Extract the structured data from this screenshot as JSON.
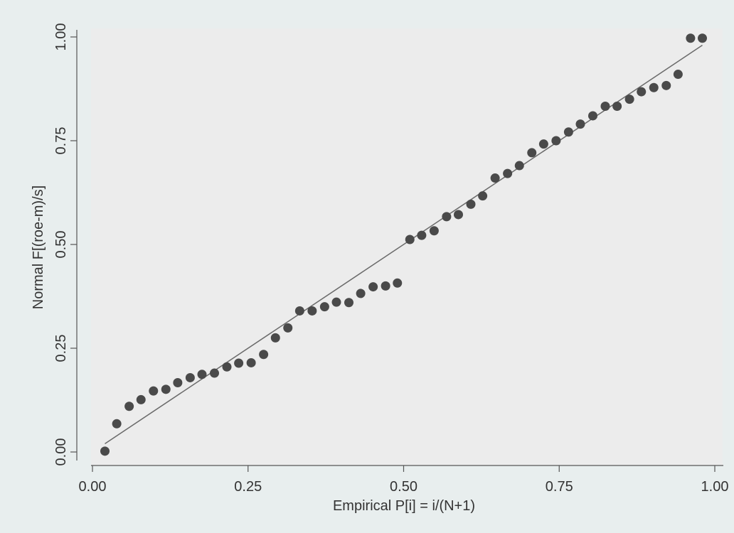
{
  "chart_data": {
    "type": "scatter",
    "title": "",
    "xlabel": "Empirical P[i] = i/(N+1)",
    "ylabel": "Normal F[(roe-m)/s]",
    "xlim": [
      0,
      1
    ],
    "ylim": [
      0,
      1
    ],
    "x_ticks": [
      "0.00",
      "0.25",
      "0.50",
      "0.75",
      "1.00"
    ],
    "y_ticks": [
      "0.00",
      "0.25",
      "0.50",
      "0.75",
      "1.00"
    ],
    "grid": false,
    "legend": "none",
    "colors": {
      "background": "#e8eeee",
      "plot_background": "#ececec",
      "marker": "#4a4a4a",
      "line": "#6a6a6a",
      "text": "#333333"
    },
    "reference_line": {
      "x": [
        0.02,
        0.98
      ],
      "y": [
        0.02,
        0.98
      ]
    },
    "points": {
      "x": [
        0.02,
        0.039,
        0.059,
        0.078,
        0.098,
        0.118,
        0.137,
        0.157,
        0.176,
        0.196,
        0.216,
        0.235,
        0.255,
        0.275,
        0.294,
        0.314,
        0.333,
        0.353,
        0.373,
        0.392,
        0.412,
        0.431,
        0.451,
        0.471,
        0.49,
        0.51,
        0.529,
        0.549,
        0.569,
        0.588,
        0.608,
        0.627,
        0.647,
        0.667,
        0.686,
        0.706,
        0.725,
        0.745,
        0.765,
        0.784,
        0.804,
        0.824,
        0.843,
        0.863,
        0.882,
        0.902,
        0.922,
        0.941,
        0.961,
        0.98
      ],
      "y": [
        0.002,
        0.068,
        0.11,
        0.126,
        0.147,
        0.151,
        0.167,
        0.179,
        0.187,
        0.19,
        0.205,
        0.214,
        0.215,
        0.235,
        0.275,
        0.299,
        0.34,
        0.34,
        0.35,
        0.361,
        0.36,
        0.382,
        0.398,
        0.4,
        0.407,
        0.512,
        0.522,
        0.533,
        0.567,
        0.572,
        0.597,
        0.617,
        0.66,
        0.671,
        0.69,
        0.721,
        0.742,
        0.75,
        0.771,
        0.79,
        0.81,
        0.833,
        0.833,
        0.85,
        0.868,
        0.878,
        0.883,
        0.91,
        0.997,
        0.997
      ]
    }
  }
}
